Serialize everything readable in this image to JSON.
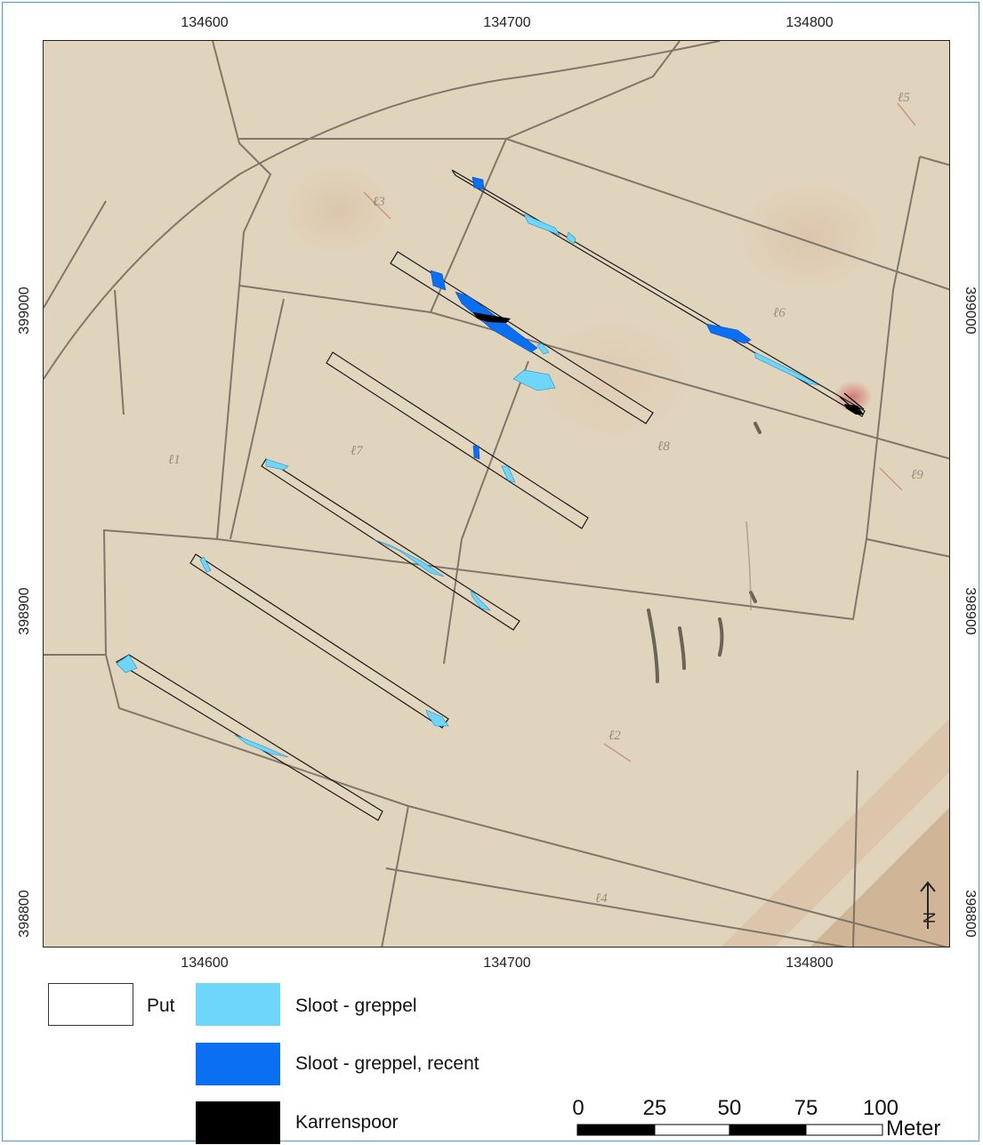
{
  "map": {
    "x_ticks": [
      "134600",
      "134700",
      "134800"
    ],
    "y_ticks": [
      "399000",
      "398900",
      "398800"
    ]
  },
  "legend": {
    "items": [
      {
        "label": "Put",
        "color": "#ffffff"
      },
      {
        "label": "Sloot - greppel",
        "color": "#6fd6fb"
      },
      {
        "label": "Sloot - greppel, recent",
        "color": "#0a6ff0"
      },
      {
        "label": "Karrenspoor",
        "color": "#000000"
      }
    ]
  },
  "scalebar": {
    "values": [
      "0",
      "25",
      "50",
      "75",
      "100"
    ],
    "unit": "Meter"
  },
  "north_arrow": {
    "label": "N",
    "icon": "north-arrow-icon"
  }
}
